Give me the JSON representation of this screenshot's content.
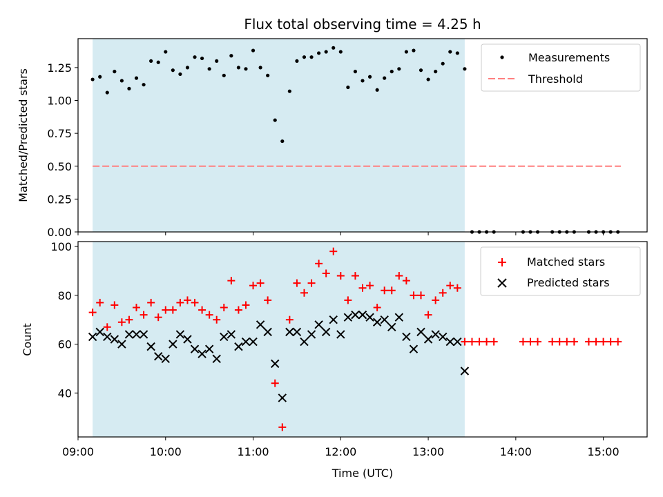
{
  "colors": {
    "span_fill": "#add8e6",
    "measurement": "#000000",
    "threshold": "#ff7f7f",
    "matched": "#ff0000",
    "predicted": "#000000"
  },
  "chart_data": [
    {
      "type": "scatter",
      "title": "Flux total observing time = 4.25 h",
      "xlabel": "",
      "ylabel": "Matched/Predicted stars",
      "xlim": [
        "09:00",
        "15:30"
      ],
      "ylim": [
        0,
        1.47
      ],
      "yticks": [
        0.0,
        0.25,
        0.5,
        0.75,
        1.0,
        1.25
      ],
      "ytick_labels": [
        "0.00",
        "0.25",
        "0.50",
        "0.75",
        "1.00",
        "1.25"
      ],
      "shaded_span": [
        "09:10",
        "13:25"
      ],
      "legend": {
        "placement": "upper right",
        "entries": [
          "Measurements",
          "Threshold"
        ]
      },
      "threshold": {
        "name": "Threshold",
        "y": 0.5,
        "x": [
          "09:10",
          "15:12"
        ]
      },
      "series": [
        {
          "name": "Measurements",
          "x": [
            "09:10",
            "09:15",
            "09:20",
            "09:25",
            "09:30",
            "09:35",
            "09:40",
            "09:45",
            "09:50",
            "09:55",
            "10:00",
            "10:05",
            "10:10",
            "10:15",
            "10:20",
            "10:25",
            "10:30",
            "10:35",
            "10:40",
            "10:45",
            "10:50",
            "10:55",
            "11:00",
            "11:05",
            "11:10",
            "11:15",
            "11:20",
            "11:25",
            "11:30",
            "11:35",
            "11:40",
            "11:45",
            "11:50",
            "11:55",
            "12:00",
            "12:05",
            "12:10",
            "12:15",
            "12:20",
            "12:25",
            "12:30",
            "12:35",
            "12:40",
            "12:45",
            "12:50",
            "12:55",
            "13:00",
            "13:05",
            "13:10",
            "13:15",
            "13:20",
            "13:25",
            "13:30",
            "13:35",
            "13:40",
            "13:45",
            "14:05",
            "14:10",
            "14:15",
            "14:25",
            "14:30",
            "14:35",
            "14:40",
            "14:50",
            "14:55",
            "15:00",
            "15:05",
            "15:10"
          ],
          "y": [
            1.16,
            1.18,
            1.06,
            1.22,
            1.15,
            1.09,
            1.17,
            1.12,
            1.3,
            1.29,
            1.37,
            1.23,
            1.2,
            1.25,
            1.33,
            1.32,
            1.24,
            1.3,
            1.19,
            1.34,
            1.25,
            1.24,
            1.38,
            1.25,
            1.19,
            0.85,
            0.69,
            1.07,
            1.3,
            1.33,
            1.33,
            1.36,
            1.37,
            1.4,
            1.37,
            1.1,
            1.22,
            1.15,
            1.18,
            1.08,
            1.17,
            1.22,
            1.24,
            1.37,
            1.38,
            1.23,
            1.16,
            1.22,
            1.28,
            1.37,
            1.36,
            1.24,
            0,
            0,
            0,
            0,
            0,
            0,
            0,
            0,
            0,
            0,
            0,
            0,
            0,
            0,
            0,
            0
          ]
        }
      ]
    },
    {
      "type": "scatter",
      "title": "",
      "xlabel": "Time (UTC)",
      "ylabel": "Count",
      "xlim": [
        "09:00",
        "15:30"
      ],
      "ylim": [
        22,
        102
      ],
      "yticks": [
        40,
        60,
        80,
        100
      ],
      "xtick_labels": [
        "09:00",
        "10:00",
        "11:00",
        "12:00",
        "13:00",
        "14:00",
        "15:00"
      ],
      "shaded_span": [
        "09:10",
        "13:25"
      ],
      "legend": {
        "placement": "upper right",
        "entries": [
          "Matched stars",
          "Predicted stars"
        ]
      },
      "series": [
        {
          "name": "Matched stars",
          "x": [
            "09:10",
            "09:15",
            "09:20",
            "09:25",
            "09:30",
            "09:35",
            "09:40",
            "09:45",
            "09:50",
            "09:55",
            "10:00",
            "10:05",
            "10:10",
            "10:15",
            "10:20",
            "10:25",
            "10:30",
            "10:35",
            "10:40",
            "10:45",
            "10:50",
            "10:55",
            "11:00",
            "11:05",
            "11:10",
            "11:15",
            "11:20",
            "11:25",
            "11:30",
            "11:35",
            "11:40",
            "11:45",
            "11:50",
            "11:55",
            "12:00",
            "12:05",
            "12:10",
            "12:15",
            "12:20",
            "12:25",
            "12:30",
            "12:35",
            "12:40",
            "12:45",
            "12:50",
            "12:55",
            "13:00",
            "13:05",
            "13:10",
            "13:15",
            "13:20",
            "13:25",
            "13:30",
            "13:35",
            "13:40",
            "13:45",
            "14:05",
            "14:10",
            "14:15",
            "14:25",
            "14:30",
            "14:35",
            "14:40",
            "14:50",
            "14:55",
            "15:00",
            "15:05",
            "15:10"
          ],
          "y": [
            73,
            77,
            67,
            76,
            69,
            70,
            75,
            72,
            77,
            71,
            74,
            74,
            77,
            78,
            77,
            74,
            72,
            70,
            75,
            86,
            74,
            76,
            84,
            85,
            78,
            44,
            26,
            70,
            85,
            81,
            85,
            93,
            89,
            98,
            88,
            78,
            88,
            83,
            84,
            75,
            82,
            82,
            88,
            86,
            80,
            80,
            72,
            78,
            81,
            84,
            83,
            61,
            61,
            61,
            61,
            61,
            61,
            61,
            61,
            61,
            61,
            61,
            61,
            61,
            61,
            61,
            61,
            61
          ]
        },
        {
          "name": "Predicted stars",
          "x": [
            "09:10",
            "09:15",
            "09:20",
            "09:25",
            "09:30",
            "09:35",
            "09:40",
            "09:45",
            "09:50",
            "09:55",
            "10:00",
            "10:05",
            "10:10",
            "10:15",
            "10:20",
            "10:25",
            "10:30",
            "10:35",
            "10:40",
            "10:45",
            "10:50",
            "10:55",
            "11:00",
            "11:05",
            "11:10",
            "11:15",
            "11:20",
            "11:25",
            "11:30",
            "11:35",
            "11:40",
            "11:45",
            "11:50",
            "11:55",
            "12:00",
            "12:05",
            "12:10",
            "12:15",
            "12:20",
            "12:25",
            "12:30",
            "12:35",
            "12:40",
            "12:45",
            "12:50",
            "12:55",
            "13:00",
            "13:05",
            "13:10",
            "13:15",
            "13:20",
            "13:25"
          ],
          "y": [
            63,
            65,
            63,
            62,
            60,
            64,
            64,
            64,
            59,
            55,
            54,
            60,
            64,
            62,
            58,
            56,
            58,
            54,
            63,
            64,
            59,
            61,
            61,
            68,
            65,
            52,
            38,
            65,
            65,
            61,
            64,
            68,
            65,
            70,
            64,
            71,
            72,
            72,
            71,
            69,
            70,
            67,
            71,
            63,
            58,
            65,
            62,
            64,
            63,
            61,
            61,
            49
          ]
        }
      ]
    }
  ]
}
